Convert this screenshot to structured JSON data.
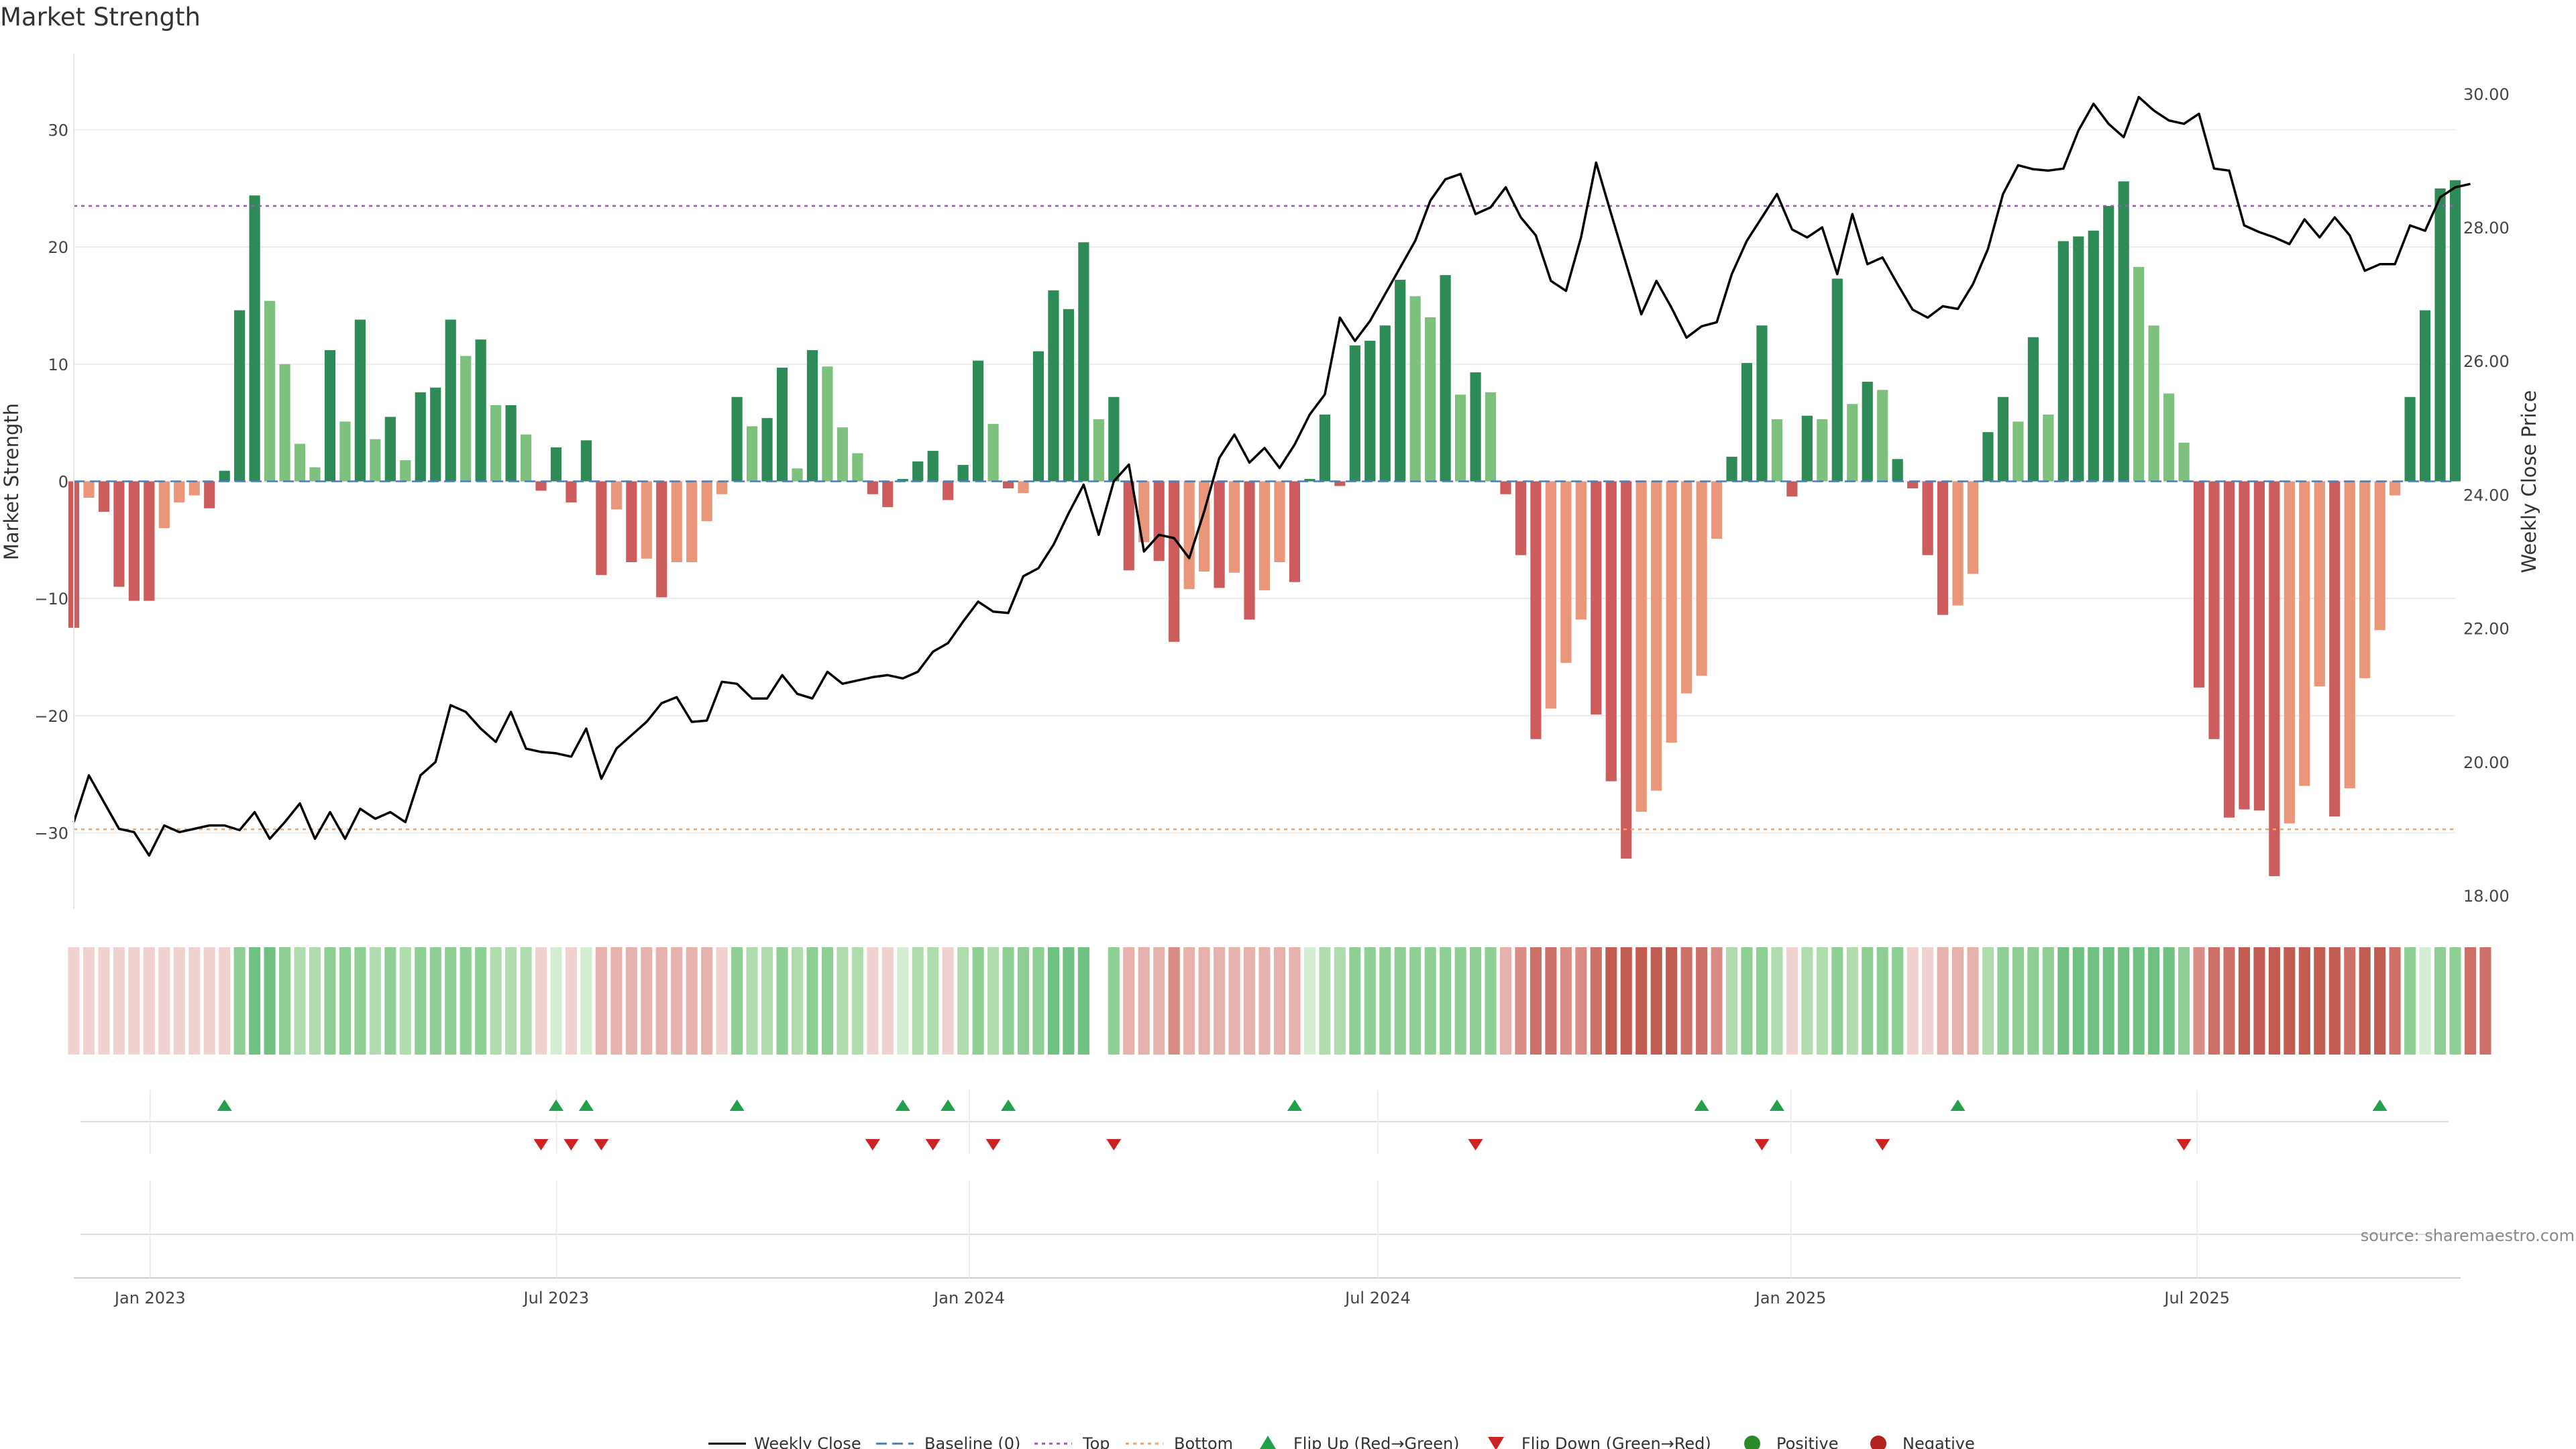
{
  "chart_data": {
    "type": "bar",
    "title": "Market Strength",
    "ylabel": "Market Strength",
    "y2label": "Weekly Close Price",
    "ylim": [
      -36.5,
      36.5
    ],
    "y2lim": [
      17.8,
      30.6
    ],
    "yticks": [
      -30,
      -20,
      -10,
      0,
      10,
      20,
      30
    ],
    "yticks_text": [
      "−30",
      "−20",
      "−10",
      "0",
      "10",
      "20",
      "30"
    ],
    "y2ticks": [
      18,
      20,
      22,
      24,
      26,
      28,
      30
    ],
    "y2ticks_text": [
      "18.00",
      "20.00",
      "22.00",
      "24.00",
      "26.00",
      "28.00",
      "30.00"
    ],
    "x_start": "2022-11-28",
    "x_end": "2025-10-24",
    "xticks": [
      {
        "date": "2023-01-01",
        "label": "Jan 2023"
      },
      {
        "date": "2023-07-01",
        "label": "Jul 2023"
      },
      {
        "date": "2024-01-01",
        "label": "Jan 2024"
      },
      {
        "date": "2024-07-01",
        "label": "Jul 2024"
      },
      {
        "date": "2025-01-01",
        "label": "Jan 2025"
      },
      {
        "date": "2025-07-01",
        "label": "Jul 2025"
      }
    ],
    "top_level": 23.5,
    "bottom_level": -29.7,
    "strength": [
      -12.5,
      -1.4,
      -2.6,
      -9,
      -10.2,
      -10.2,
      -4,
      -1.8,
      -1.2,
      -2.3,
      0.9,
      14.6,
      24.4,
      15.4,
      10,
      3.2,
      1.2,
      11.2,
      5.1,
      13.8,
      3.6,
      5.5,
      1.8,
      7.6,
      8,
      13.8,
      10.7,
      12.1,
      6.5,
      6.5,
      4,
      -0.8,
      2.9,
      -1.8,
      3.5,
      -8,
      -2.4,
      -6.9,
      -6.6,
      -9.9,
      -6.9,
      -6.9,
      -3.4,
      -1.1,
      7.2,
      4.7,
      5.4,
      9.7,
      1.1,
      11.2,
      9.8,
      4.6,
      2.4,
      -1.1,
      -2.2,
      0.2,
      1.7,
      2.6,
      -1.6,
      1.4,
      10.3,
      4.9,
      -0.6,
      -1,
      11.1,
      16.3,
      14.7,
      20.4,
      5.3,
      7.2,
      -7.6,
      -5.2,
      -6.8,
      -13.7,
      -9.2,
      -7.7,
      -9.1,
      -7.8,
      -11.8,
      -9.3,
      -6.9,
      -8.6,
      0.2,
      5.7,
      -0.4,
      11.6,
      12,
      13.3,
      17.2,
      15.8,
      14,
      17.6,
      7.4,
      9.3,
      7.6,
      -1.1,
      -6.3,
      -22,
      -19.4,
      -15.5,
      -11.8,
      -19.9,
      -25.6,
      -32.2,
      -28.2,
      -26.4,
      -22.3,
      -18.1,
      -16.6,
      -4.9,
      2.1,
      10.1,
      13.3,
      5.3,
      -1.3,
      5.6,
      5.3,
      17.3,
      6.6,
      8.5,
      7.8,
      1.9,
      -0.6,
      -6.3,
      -11.4,
      -10.6,
      -7.9,
      4.2,
      7.2,
      5.1,
      12.3,
      5.7,
      20.5,
      20.9,
      21.4,
      23.5,
      25.6,
      18.3,
      13.3,
      7.5,
      3.3,
      -17.6,
      -22,
      -28.7,
      -28,
      -28.1,
      -33.7,
      -29.2,
      -26,
      -17.5,
      -28.6,
      -26.2,
      -16.8,
      -12.7,
      -1.2,
      7.2,
      14.6,
      25,
      25.7
    ],
    "strength_shade": [
      "d",
      "l",
      "d",
      "d",
      "d",
      "d",
      "l",
      "l",
      "l",
      "d",
      "d",
      "d",
      "d",
      "l",
      "l",
      "l",
      "l",
      "d",
      "l",
      "d",
      "l",
      "d",
      "l",
      "d",
      "d",
      "d",
      "l",
      "d",
      "l",
      "d",
      "l",
      "d",
      "d",
      "d",
      "d",
      "d",
      "l",
      "d",
      "l",
      "d",
      "l",
      "l",
      "l",
      "l",
      "d",
      "l",
      "d",
      "d",
      "l",
      "d",
      "l",
      "l",
      "l",
      "d",
      "d",
      "d",
      "d",
      "d",
      "d",
      "d",
      "d",
      "l",
      "d",
      "l",
      "d",
      "d",
      "d",
      "d",
      "l",
      "d",
      "d",
      "l",
      "d",
      "d",
      "l",
      "l",
      "d",
      "l",
      "d",
      "l",
      "l",
      "d",
      "d",
      "d",
      "d",
      "d",
      "d",
      "d",
      "d",
      "l",
      "l",
      "d",
      "l",
      "d",
      "l",
      "d",
      "d",
      "d",
      "l",
      "l",
      "l",
      "d",
      "d",
      "d",
      "l",
      "l",
      "l",
      "l",
      "l",
      "l",
      "d",
      "d",
      "d",
      "l",
      "d",
      "d",
      "l",
      "d",
      "l",
      "d",
      "l",
      "d",
      "d",
      "d",
      "d",
      "l",
      "l",
      "d",
      "d",
      "l",
      "d",
      "l",
      "d",
      "d",
      "d",
      "d",
      "d",
      "l",
      "l",
      "l",
      "l",
      "d",
      "d",
      "d",
      "d",
      "d",
      "d",
      "l",
      "l",
      "l",
      "d",
      "l",
      "l",
      "l",
      "l",
      "d",
      "d",
      "d",
      "d"
    ],
    "heat_levels": [
      1,
      1,
      1,
      1,
      1,
      1,
      1,
      1,
      1,
      1,
      1,
      3,
      4,
      4,
      3,
      2,
      2,
      3,
      3,
      3,
      2,
      3,
      2,
      3,
      3,
      3,
      3,
      3,
      2,
      2,
      2,
      1,
      1,
      1,
      1,
      2,
      2,
      2,
      2,
      2,
      2,
      2,
      2,
      1,
      3,
      2,
      2,
      3,
      2,
      3,
      3,
      2,
      2,
      1,
      1,
      1,
      2,
      2,
      1,
      2,
      3,
      2,
      3,
      3,
      3,
      4,
      4,
      4,
      null,
      3,
      2,
      2,
      2,
      3,
      2,
      2,
      2,
      2,
      2,
      2,
      2,
      2,
      1,
      2,
      2,
      3,
      3,
      3,
      3,
      3,
      3,
      3,
      3,
      3,
      3,
      2,
      3,
      4,
      4,
      3,
      3,
      4,
      5,
      5,
      5,
      5,
      5,
      4,
      4,
      3,
      2,
      3,
      3,
      2,
      1,
      2,
      2,
      3,
      2,
      3,
      3,
      3,
      1,
      1,
      2,
      2,
      2,
      2,
      3,
      3,
      3,
      3,
      4,
      4,
      4,
      4,
      4,
      4,
      4,
      4,
      3,
      3,
      4,
      4,
      5,
      5,
      5,
      5,
      5,
      5,
      5,
      4,
      5,
      5,
      4,
      3,
      1,
      3,
      3,
      4,
      4
    ],
    "heat_sign": [
      "n",
      "n",
      "n",
      "n",
      "n",
      "n",
      "n",
      "n",
      "n",
      "n",
      "n",
      "p",
      "p",
      "p",
      "p",
      "p",
      "p",
      "p",
      "p",
      "p",
      "p",
      "p",
      "p",
      "p",
      "p",
      "p",
      "p",
      "p",
      "p",
      "p",
      "p",
      "n",
      "p",
      "n",
      "p",
      "n",
      "n",
      "n",
      "n",
      "n",
      "n",
      "n",
      "n",
      "n",
      "p",
      "p",
      "p",
      "p",
      "p",
      "p",
      "p",
      "p",
      "p",
      "n",
      "n",
      "p",
      "p",
      "p",
      "n",
      "p",
      "p",
      "p",
      "p",
      "p",
      "p",
      "p",
      "p",
      "p",
      null,
      "p",
      "n",
      "n",
      "n",
      "n",
      "n",
      "n",
      "n",
      "n",
      "n",
      "n",
      "n",
      "n",
      "p",
      "p",
      "p",
      "p",
      "p",
      "p",
      "p",
      "p",
      "p",
      "p",
      "p",
      "p",
      "p",
      "n",
      "n",
      "n",
      "n",
      "n",
      "n",
      "n",
      "n",
      "n",
      "n",
      "n",
      "n",
      "n",
      "n",
      "n",
      "p",
      "p",
      "p",
      "p",
      "n",
      "p",
      "p",
      "p",
      "p",
      "p",
      "p",
      "p",
      "n",
      "n",
      "n",
      "n",
      "n",
      "p",
      "p",
      "p",
      "p",
      "p",
      "p",
      "p",
      "p",
      "p",
      "p",
      "p",
      "p",
      "p",
      "p",
      "n",
      "n",
      "n",
      "n",
      "n",
      "n",
      "n",
      "n",
      "n",
      "n",
      "n",
      "n",
      "n",
      "n",
      "p",
      "p",
      "p",
      "p"
    ],
    "flip_up_indices": [
      10,
      32,
      34,
      44,
      55,
      58,
      62,
      81,
      108,
      113,
      125,
      153
    ],
    "flip_down_indices": [
      31,
      33,
      35,
      53,
      57,
      61,
      69,
      93,
      112,
      120,
      140
    ],
    "close": [
      19.1,
      19.8,
      19.4,
      19,
      18.95,
      18.6,
      19.05,
      18.95,
      19,
      19.05,
      19.05,
      18.98,
      19.25,
      18.85,
      19.1,
      19.38,
      18.85,
      19.25,
      18.85,
      19.3,
      19.15,
      19.25,
      19.1,
      19.8,
      20,
      20.85,
      20.75,
      20.5,
      20.3,
      20.75,
      20.2,
      20.15,
      20.13,
      20.08,
      20.5,
      19.75,
      20.2,
      20.4,
      20.6,
      20.88,
      20.97,
      20.6,
      20.62,
      21.2,
      21.17,
      20.95,
      20.95,
      21.3,
      21.02,
      20.95,
      21.35,
      21.17,
      21.22,
      21.27,
      21.3,
      21.25,
      21.35,
      21.65,
      21.78,
      22.1,
      22.4,
      22.25,
      22.23,
      22.78,
      22.9,
      23.25,
      23.72,
      24.15,
      23.4,
      24.2,
      24.45,
      23.15,
      23.4,
      23.35,
      23.05,
      23.75,
      24.55,
      24.9,
      24.48,
      24.7,
      24.4,
      24.75,
      25.2,
      25.5,
      26.65,
      26.3,
      26.6,
      27,
      27.4,
      27.8,
      28.4,
      28.72,
      28.8,
      28.2,
      28.3,
      28.6,
      28.15,
      27.88,
      27.2,
      27.05,
      27.85,
      28.97,
      28.2,
      27.45,
      26.7,
      27.2,
      26.8,
      26.35,
      26.52,
      26.58,
      27.3,
      27.8,
      28.15,
      28.5,
      27.97,
      27.85,
      28,
      27.3,
      28.2,
      27.45,
      27.55,
      27.15,
      26.77,
      26.65,
      26.82,
      26.78,
      27.15,
      27.68,
      28.5,
      28.93,
      28.87,
      28.85,
      28.88,
      29.45,
      29.85,
      29.55,
      29.35,
      29.95,
      29.75,
      29.6,
      29.55,
      29.7,
      28.88,
      28.85,
      28.03,
      27.93,
      27.85,
      27.75,
      28.12,
      27.85,
      28.15,
      27.88,
      27.35,
      27.45,
      27.45,
      28.03,
      27.95,
      28.45,
      28.6,
      28.65
    ]
  },
  "legend": {
    "close": "Weekly Close",
    "baseline": "Baseline (0)",
    "top": "Top",
    "bottom": "Bottom",
    "flip_up": "Flip Up (Red→Green)",
    "flip_down": "Flip Down (Green→Red)",
    "positive": "Positive",
    "negative": "Negative"
  },
  "source": "source: sharemaestro.com",
  "colors": {
    "pos_dark": "#2e8b57",
    "pos_light": "#7ec17e",
    "neg_dark": "#cd5c5c",
    "neg_light": "#e9967a",
    "close_line": "#000000",
    "baseline": "#4a7fb5",
    "top_line": "#9b59b6",
    "bottom_line": "#f4a460",
    "flip_up": "#22a04b",
    "flip_down": "#cc2222",
    "positive_dot": "#2a8a2a",
    "negative_dot": "#b22222",
    "heat_pos": [
      "#d4ecd2",
      "#b0dcb0",
      "#8fcf96",
      "#71c083",
      "#5aaf74"
    ],
    "heat_neg": [
      "#efd2d0",
      "#e5b2ad",
      "#d98c86",
      "#cd7069",
      "#c25b52"
    ]
  }
}
